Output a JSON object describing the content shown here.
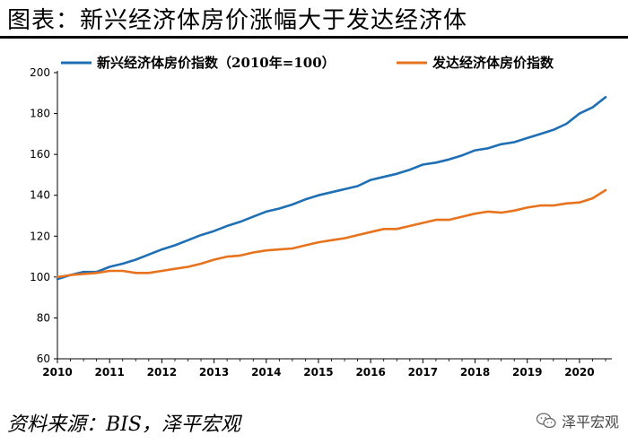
{
  "page": {
    "title": "图表：新兴经济体房价涨幅大于发达经济体",
    "source": "资料来源：BIS，泽平宏观",
    "watermark": "泽平宏观",
    "watermark_icon": "wechat-icon"
  },
  "chart_data": {
    "type": "line",
    "title": "图表：新兴经济体房价涨幅大于发达经济体",
    "xlabel": "",
    "ylabel": "",
    "xlim": [
      2010,
      2020.62
    ],
    "ylim": [
      60,
      200
    ],
    "yticks": [
      60,
      80,
      100,
      120,
      140,
      160,
      180,
      200
    ],
    "xticks": [
      "2010",
      "2011",
      "2012",
      "2013",
      "2014",
      "2015",
      "2016",
      "2017",
      "2018",
      "2019",
      "2020"
    ],
    "grid": false,
    "legend_position": "top",
    "series": [
      {
        "name": "新兴经济体房价指数（2010年=100）",
        "color": "#1F6FB5",
        "x": [
          2010,
          2010.25,
          2010.5,
          2010.75,
          2011,
          2011.25,
          2011.5,
          2011.75,
          2012,
          2012.25,
          2012.5,
          2012.75,
          2013,
          2013.25,
          2013.5,
          2013.75,
          2014,
          2014.25,
          2014.5,
          2014.75,
          2015,
          2015.25,
          2015.5,
          2015.75,
          2016,
          2016.25,
          2016.5,
          2016.75,
          2017,
          2017.25,
          2017.5,
          2017.75,
          2018,
          2018.25,
          2018.5,
          2018.75,
          2019,
          2019.25,
          2019.5,
          2019.75,
          2020,
          2020.25,
          2020.5
        ],
        "values": [
          99,
          101,
          102.5,
          102.5,
          105,
          106.5,
          108.5,
          111,
          113.5,
          115.5,
          118,
          120.5,
          122.5,
          125,
          127,
          129.5,
          132,
          133.5,
          135.5,
          138,
          140,
          141.5,
          143,
          144.5,
          147.5,
          149,
          150.5,
          152.5,
          155,
          156,
          157.5,
          159.5,
          162,
          163,
          165,
          166,
          168,
          170,
          172,
          175,
          180,
          183,
          188
        ]
      },
      {
        "name": "发达经济体房价指数",
        "color": "#E8731E",
        "x": [
          2010,
          2010.25,
          2010.5,
          2010.75,
          2011,
          2011.25,
          2011.5,
          2011.75,
          2012,
          2012.25,
          2012.5,
          2012.75,
          2013,
          2013.25,
          2013.5,
          2013.75,
          2014,
          2014.25,
          2014.5,
          2014.75,
          2015,
          2015.25,
          2015.5,
          2015.75,
          2016,
          2016.25,
          2016.5,
          2016.75,
          2017,
          2017.25,
          2017.5,
          2017.75,
          2018,
          2018.25,
          2018.5,
          2018.75,
          2019,
          2019.25,
          2019.5,
          2019.75,
          2020,
          2020.25,
          2020.5
        ],
        "values": [
          100,
          101,
          101.5,
          102,
          103,
          103,
          102,
          102,
          103,
          104,
          105,
          106.5,
          108.5,
          110,
          110.5,
          112,
          113,
          113.5,
          114,
          115.5,
          117,
          118,
          119,
          120.5,
          122,
          123.5,
          123.5,
          125,
          126.5,
          128,
          128,
          129.5,
          131,
          132,
          131.5,
          132.5,
          134,
          135,
          135,
          136,
          136.5,
          138.5,
          142.5
        ]
      }
    ]
  }
}
